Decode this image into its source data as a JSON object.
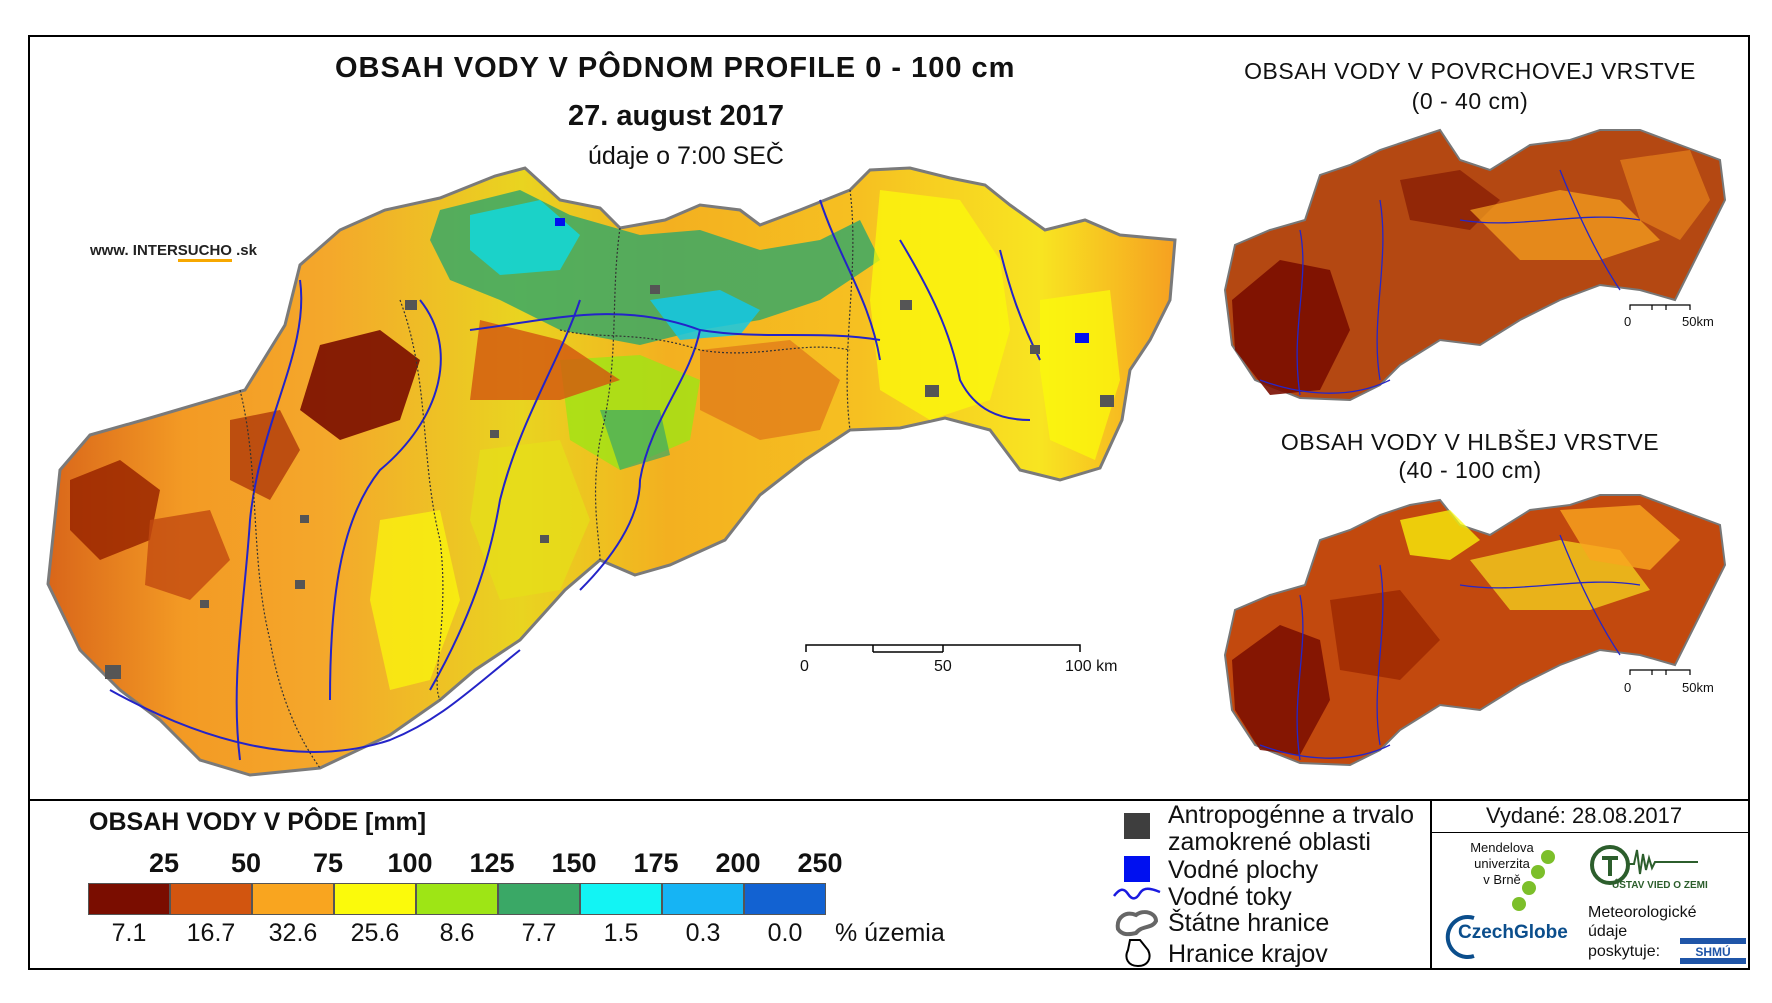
{
  "title": "OBSAH VODY V PÔDNOM PROFILE 0 - 100 cm",
  "date": "27. august 2017",
  "subtitle": "údaje o 7:00 SEČ",
  "website": {
    "prefix": "www. INTER",
    "accent": "SUCHO",
    "suffix": " .sk"
  },
  "inset_top": {
    "title": "OBSAH VODY V POVRCHOVEJ VRSTVE",
    "range": "(0 - 40 cm)",
    "scale": [
      "0",
      "50km"
    ]
  },
  "inset_bottom": {
    "title": "OBSAH VODY V HLBŠEJ VRSTVE",
    "range": "(40 - 100 cm)",
    "scale": [
      "0",
      "50km"
    ]
  },
  "main_scale": [
    "0",
    "50",
    "100 km"
  ],
  "legend": {
    "title": "OBSAH VODY V PÔDE [mm]",
    "thresholds": [
      "25",
      "50",
      "75",
      "100",
      "125",
      "150",
      "175",
      "200",
      "250"
    ],
    "colors": [
      "#7a0d00",
      "#d2550f",
      "#f9a51f",
      "#fbfa0b",
      "#9ee515",
      "#3aa866",
      "#12f4f4",
      "#16b4f4",
      "#1262d2"
    ],
    "percents": [
      "7.1",
      "16.7",
      "32.6",
      "25.6",
      "8.6",
      "7.7",
      "1.5",
      "0.3",
      "0.0"
    ],
    "unit": "% územia"
  },
  "symbols": [
    {
      "label": "Antropogénne a trvalo",
      "label2": "zamokrené oblasti",
      "icon": "gray-square-icon"
    },
    {
      "label": "Vodné plochy",
      "icon": "blue-square-icon"
    },
    {
      "label": "Vodné toky",
      "icon": "river-line-icon"
    },
    {
      "label": "Štátne hranice",
      "icon": "state-border-icon"
    },
    {
      "label": "Hranice krajov",
      "icon": "region-border-icon"
    }
  ],
  "issued": "Vydané: 28.08.2017",
  "logos": {
    "mendel": [
      "Mendelova",
      "univerzita",
      "v Brně"
    ],
    "czechglobe": "CzechGlobe",
    "uvoz": "ÚSTAV VIED O ZEMI",
    "meteo": [
      "Meteorologické",
      "údaje",
      "poskytuje:"
    ],
    "shmu": "SHMÚ"
  }
}
